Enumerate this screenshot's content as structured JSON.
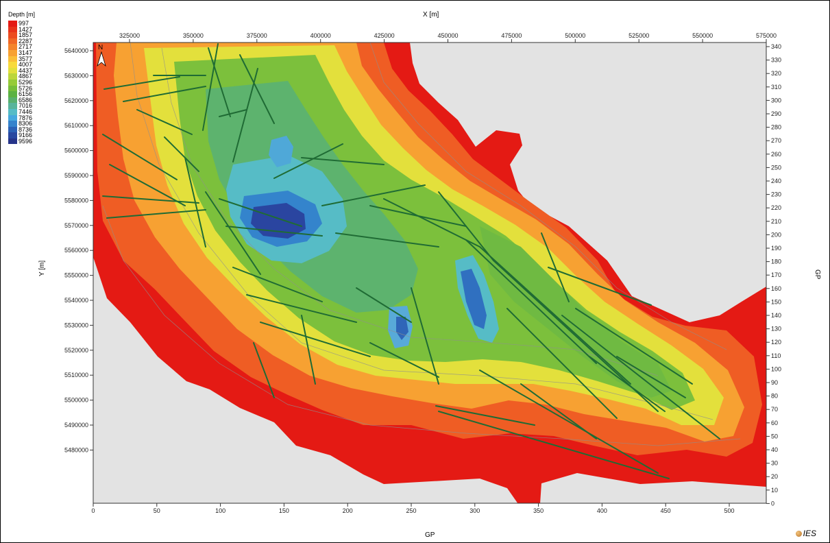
{
  "legend": {
    "title": "Depth [m]",
    "entries": [
      {
        "label": "997",
        "color": "#e41a14"
      },
      {
        "label": "1427",
        "color": "#e8331a"
      },
      {
        "label": "1857",
        "color": "#ec4c20"
      },
      {
        "label": "2287",
        "color": "#f06826"
      },
      {
        "label": "2717",
        "color": "#f4842c"
      },
      {
        "label": "3147",
        "color": "#f7a132"
      },
      {
        "label": "3577",
        "color": "#fabe38"
      },
      {
        "label": "4007",
        "color": "#f8da3c"
      },
      {
        "label": "4437",
        "color": "#e2e03c"
      },
      {
        "label": "4867",
        "color": "#bcd63a"
      },
      {
        "label": "5296",
        "color": "#96cb38"
      },
      {
        "label": "5726",
        "color": "#76be3a"
      },
      {
        "label": "6156",
        "color": "#5cb243"
      },
      {
        "label": "6586",
        "color": "#59b06e"
      },
      {
        "label": "7016",
        "color": "#58b49b"
      },
      {
        "label": "7446",
        "color": "#55bcc6"
      },
      {
        "label": "7876",
        "color": "#45a8de"
      },
      {
        "label": "8306",
        "color": "#3583cc"
      },
      {
        "label": "8736",
        "color": "#2b61b6"
      },
      {
        "label": "9166",
        "color": "#2847a0"
      },
      {
        "label": "9596",
        "color": "#26348a"
      }
    ]
  },
  "axes": {
    "top_title": "X [m]",
    "left_title": "Y [m]",
    "bottom_title": "GP",
    "right_title": "GP",
    "x_ticks": [
      "325000",
      "350000",
      "375000",
      "400000",
      "425000",
      "450000",
      "475000",
      "500000",
      "525000",
      "550000",
      "575000"
    ],
    "y_ticks": [
      "5640000",
      "5630000",
      "5620000",
      "5610000",
      "5600000",
      "5590000",
      "5580000",
      "5570000",
      "5560000",
      "5550000",
      "5540000",
      "5530000",
      "5520000",
      "5510000",
      "5500000",
      "5490000",
      "5480000"
    ],
    "gp_bottom_ticks": [
      "0",
      "50",
      "100",
      "150",
      "200",
      "250",
      "300",
      "350",
      "400",
      "450",
      "500"
    ],
    "gp_right_ticks": [
      "340",
      "330",
      "320",
      "310",
      "300",
      "290",
      "280",
      "270",
      "260",
      "250",
      "240",
      "230",
      "220",
      "210",
      "200",
      "190",
      "180",
      "170",
      "160",
      "150",
      "140",
      "130",
      "120",
      "110",
      "100",
      "90",
      "80",
      "70",
      "60",
      "50",
      "40",
      "30",
      "20",
      "10",
      "0"
    ]
  },
  "north_arrow": "N",
  "logo": "IES",
  "colors": {
    "background": "#e3e3e3",
    "fault": "#1f6b34"
  }
}
